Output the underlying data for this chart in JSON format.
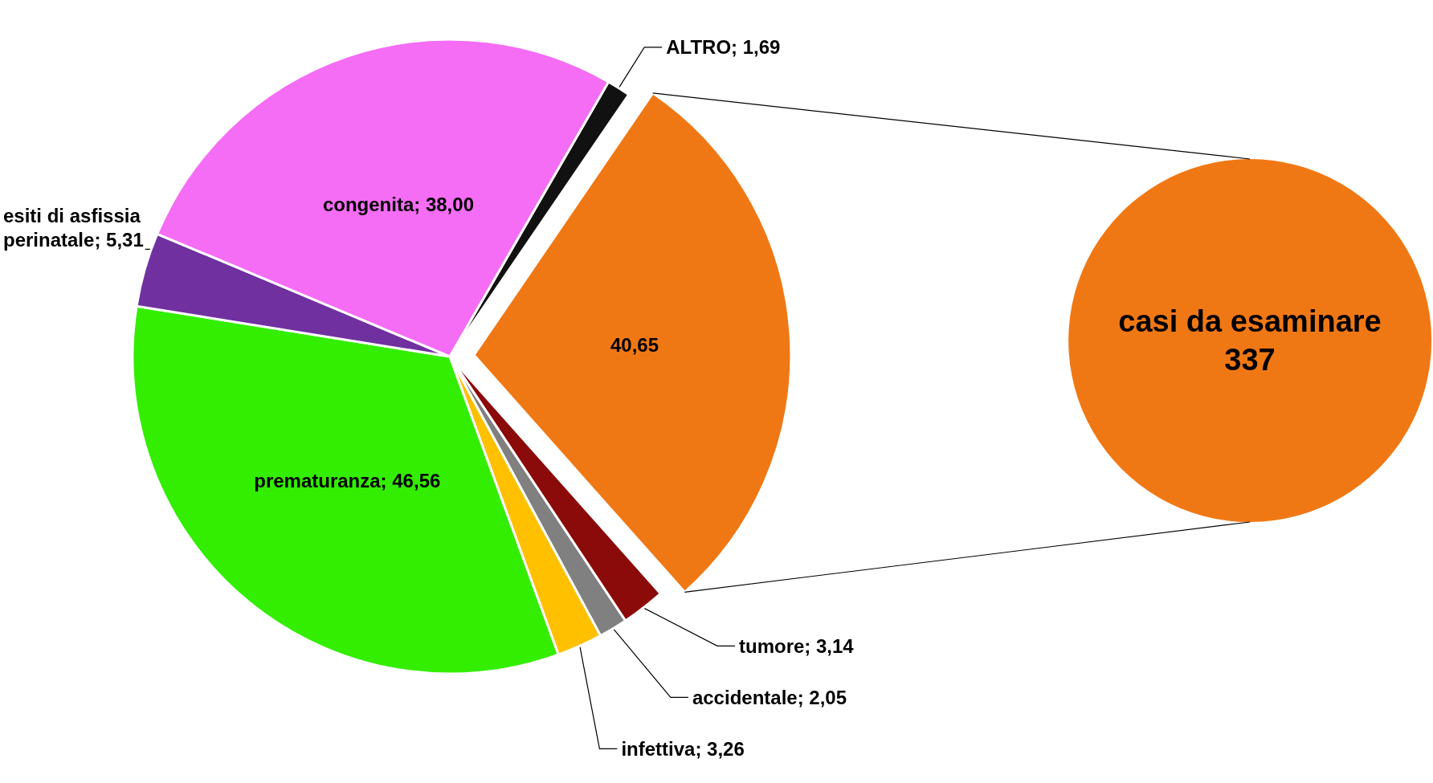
{
  "chart_data": [
    {
      "type": "pie",
      "categories": [
        "ALTRO",
        null,
        "tumore",
        "accidentale",
        "infettiva",
        "prematuranza",
        "esiti di asfissia perinatale",
        "congenita"
      ],
      "values": [
        1.69,
        40.65,
        3.14,
        2.05,
        3.26,
        46.56,
        5.31,
        38.0
      ],
      "value_labels": [
        "1,69",
        "40,65",
        "3,14",
        "2,05",
        "3,26",
        "46,56",
        "5,31",
        "38,00"
      ],
      "colors": [
        "#111111",
        "#f07814",
        "#8b0a0a",
        "#808080",
        "#ffc000",
        "#33ee00",
        "#7030a0",
        "#f56cf5"
      ]
    },
    {
      "type": "pie",
      "categories": [
        "casi da esaminare"
      ],
      "values": [
        337
      ],
      "value_labels": [
        "337"
      ],
      "colors": [
        "#f07814"
      ]
    }
  ]
}
